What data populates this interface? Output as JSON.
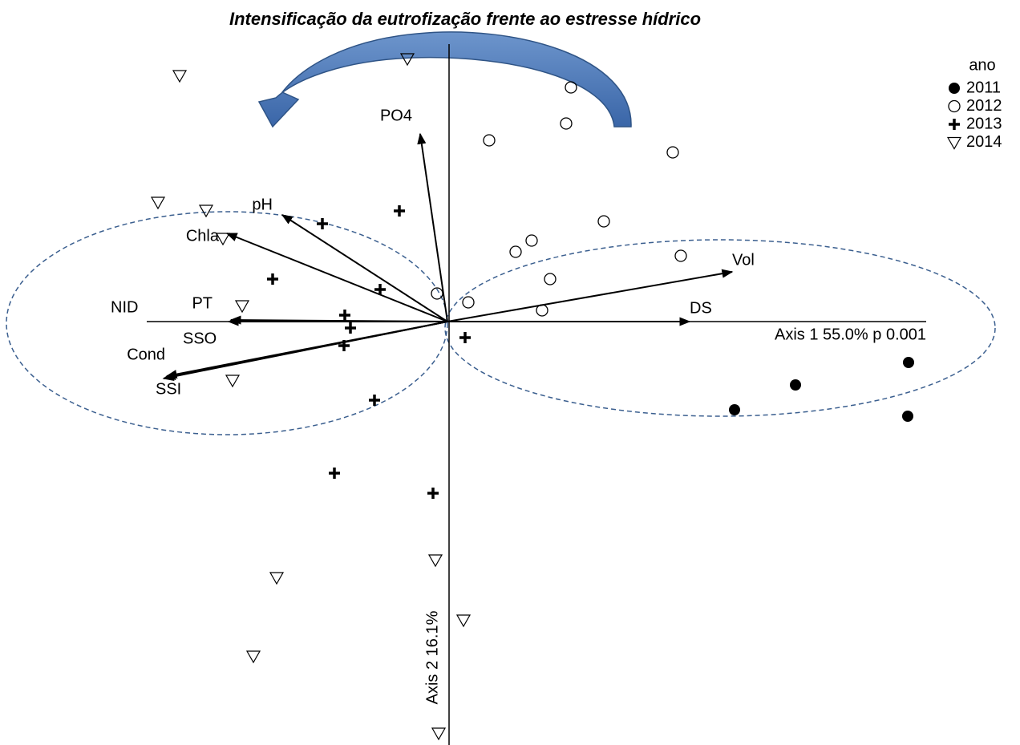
{
  "chart_data": {
    "type": "biplot",
    "title": "Intensificação da eutrofização frente ao estresse hídrico",
    "x_label": "Axis 1 55.0% p 0.001",
    "y_label": "Axis 2 16.1%",
    "xlim": [
      -5.58,
      7.14
    ],
    "ylim": [
      -5.28,
      4.01
    ],
    "legend_title": "ano",
    "legend": "top-right",
    "series": [
      {
        "name": "2011",
        "color": "#000000",
        "marker": "filled-circle",
        "x": [
          5.75,
          4.34,
          3.58,
          5.74
        ],
        "values": [
          -0.51,
          -0.79,
          -1.1,
          -1.18
        ]
      },
      {
        "name": "2012",
        "color": "#000000",
        "marker": "open-circle",
        "x": [
          1.54,
          1.48,
          0.52,
          2.81,
          1.95,
          1.05,
          0.85,
          2.91,
          1.28,
          -0.13,
          0.26,
          1.18
        ],
        "values": [
          2.92,
          2.47,
          2.26,
          2.11,
          1.25,
          1.01,
          0.87,
          0.82,
          0.53,
          0.35,
          0.24,
          0.14
        ]
      },
      {
        "name": "2013",
        "color": "#000000",
        "marker": "plus",
        "x": [
          -0.6,
          -1.56,
          -2.18,
          -0.84,
          -1.28,
          -1.21,
          -1.29,
          0.22,
          -0.91,
          -1.41,
          -0.18
        ],
        "values": [
          1.38,
          1.22,
          0.53,
          0.4,
          0.08,
          -0.08,
          -0.3,
          -0.2,
          -0.98,
          -1.89,
          -2.14
        ]
      },
      {
        "name": "2014",
        "color": "#000000",
        "marker": "open-triangle-down",
        "x": [
          -3.34,
          -0.5,
          -3.61,
          -3.01,
          -2.8,
          -2.56,
          -2.68,
          -0.15,
          -2.13,
          0.2,
          -2.42,
          -0.11
        ],
        "values": [
          3.07,
          3.28,
          1.49,
          1.39,
          1.04,
          0.2,
          -0.73,
          -2.97,
          -3.19,
          -3.72,
          -4.17,
          -5.13
        ]
      }
    ],
    "vectors": [
      {
        "name": "PO4",
        "x": -0.34,
        "y": 2.34
      },
      {
        "name": "pH",
        "x": -2.06,
        "y": 1.33
      },
      {
        "name": "Chla",
        "x": -2.75,
        "y": 1.1
      },
      {
        "name": "PT",
        "x": -2.73,
        "y": 0
      },
      {
        "name": "NID",
        "x": -2.7,
        "y": 0.02
      },
      {
        "name": "SSO",
        "x": -3.5,
        "y": -0.68
      },
      {
        "name": "Cond",
        "x": -3.52,
        "y": -0.7
      },
      {
        "name": "SSI",
        "x": -3.54,
        "y": -0.71
      },
      {
        "name": "Vol",
        "x": 3.55,
        "y": 0.62
      },
      {
        "name": "DS",
        "x": 3.02,
        "y": 0
      }
    ]
  }
}
